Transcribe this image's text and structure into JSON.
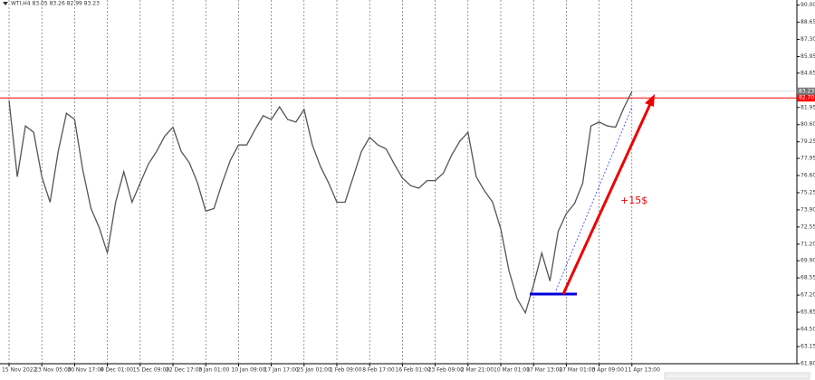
{
  "chart_data": {
    "type": "line",
    "title": "WTI,H4 83.05 83.26 82.99 83.23",
    "categories": [
      "15 Nov 2022",
      null,
      null,
      null,
      "23 Nov 05:00",
      null,
      null,
      null,
      "30 Nov 17:00",
      null,
      null,
      null,
      "8 Dec 01:00",
      null,
      null,
      null,
      "15 Dec 09:00",
      null,
      null,
      null,
      "22 Dec 17:00",
      null,
      null,
      null,
      "3 Jan 01:00",
      null,
      null,
      null,
      "10 Jan 09:00",
      null,
      null,
      null,
      "17 Jan 17:00",
      null,
      null,
      null,
      "25 Jan 01:00",
      null,
      null,
      null,
      "1 Feb 09:00",
      null,
      null,
      null,
      "8 Feb 17:00",
      null,
      null,
      null,
      "16 Feb 01:00",
      null,
      null,
      null,
      "23 Feb 09:00",
      null,
      null,
      null,
      "2 Mar 21:00",
      null,
      null,
      null,
      "10 Mar 01:00",
      null,
      null,
      null,
      "17 Mar 13:00",
      null,
      null,
      null,
      "27 Mar 01:00",
      null,
      null,
      null,
      "3 Apr 09:00",
      null,
      null,
      null,
      "11 Apr 13:00"
    ],
    "series": [
      {
        "color": "#555555",
        "values": [
          82.5,
          76.5,
          80.5,
          80.0,
          76.5,
          74.5,
          78.5,
          81.5,
          81.0,
          77.0,
          74.0,
          72.5,
          70.5,
          74.5,
          76.9,
          74.5,
          76.0,
          77.5,
          78.5,
          79.7,
          80.4,
          78.5,
          77.6,
          76.0,
          73.8,
          74.0,
          76.0,
          77.8,
          79.0,
          79.0,
          80.2,
          81.3,
          81.0,
          82.0,
          81.0,
          80.8,
          81.8,
          79.0,
          77.3,
          76.0,
          74.5,
          74.5,
          76.5,
          78.5,
          79.6,
          79.0,
          78.7,
          77.5,
          76.4,
          75.8,
          75.6,
          76.2,
          76.2,
          76.8,
          78.2,
          79.3,
          80.0,
          76.5,
          75.4,
          74.5,
          72.4,
          69.1,
          66.9,
          65.8,
          68.0,
          70.5,
          68.3,
          72.2,
          73.6,
          74.4,
          76.0,
          80.5,
          80.8,
          80.5,
          80.4,
          81.9,
          83.2
        ]
      }
    ],
    "ylim": [
      61.8,
      90.4
    ],
    "yticks": [
      {
        "value": 61.8,
        "label": "61.80"
      },
      {
        "value": 63.15,
        "label": "63.15"
      },
      {
        "value": 64.5,
        "label": "64.50"
      },
      {
        "value": 65.85,
        "label": "65.85"
      },
      {
        "value": 67.2,
        "label": "67.20"
      },
      {
        "value": 68.55,
        "label": "68.55"
      },
      {
        "value": 69.9,
        "label": "69.90"
      },
      {
        "value": 71.2,
        "label": "71.20"
      },
      {
        "value": 72.55,
        "label": "72.55"
      },
      {
        "value": 73.9,
        "label": "73.90"
      },
      {
        "value": 75.25,
        "label": "75.25"
      },
      {
        "value": 76.6,
        "label": "76.60"
      },
      {
        "value": 77.95,
        "label": "77.95"
      },
      {
        "value": 79.25,
        "label": "79.25"
      },
      {
        "value": 80.6,
        "label": "80.60"
      },
      {
        "value": 81.95,
        "label": "81.95"
      },
      {
        "value": 84.65,
        "label": "84.65"
      },
      {
        "value": 85.95,
        "label": "85.95"
      },
      {
        "value": 87.3,
        "label": "87.30"
      },
      {
        "value": 88.65,
        "label": "88.65"
      },
      {
        "value": 90,
        "label": "90.00"
      }
    ],
    "price_label": {
      "value": 83.23,
      "label": "83.23",
      "color": "#777777"
    },
    "level": {
      "value": 82.7,
      "label": "82.70",
      "color": "#ff0000"
    },
    "annotation": "+15$",
    "grid": true
  }
}
